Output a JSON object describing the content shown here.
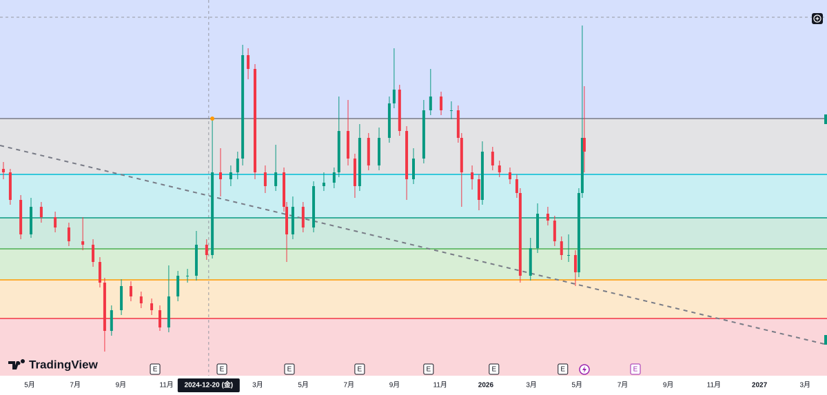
{
  "chart_data": {
    "type": "candlestick",
    "xlim": [
      -1.3,
      34.96
    ],
    "ylim": [
      0,
      545
    ],
    "xticks": [
      {
        "value": 0,
        "label": "5月"
      },
      {
        "value": 2,
        "label": "7月"
      },
      {
        "value": 4,
        "label": "9月"
      },
      {
        "value": 6,
        "label": "11月"
      },
      {
        "value": 10,
        "label": "3月"
      },
      {
        "value": 12,
        "label": "5月"
      },
      {
        "value": 14,
        "label": "7月"
      },
      {
        "value": 16,
        "label": "9月"
      },
      {
        "value": 18,
        "label": "11月"
      },
      {
        "value": 20,
        "label": "2026"
      },
      {
        "value": 22,
        "label": "3月"
      },
      {
        "value": 24,
        "label": "5月"
      },
      {
        "value": 26,
        "label": "7月"
      },
      {
        "value": 28,
        "label": "9月"
      },
      {
        "value": 30,
        "label": "11月"
      },
      {
        "value": 32,
        "label": "2027"
      },
      {
        "value": 34,
        "label": "3月"
      }
    ],
    "up_color": "#089981",
    "down_color": "#f23645",
    "x": [
      -1.15,
      -0.85,
      -0.39,
      0.06,
      0.51,
      1.12,
      1.72,
      2.33,
      2.78,
      3.08,
      3.29,
      3.59,
      4.02,
      4.44,
      4.89,
      5.35,
      5.71,
      6.1,
      6.5,
      6.92,
      7.31,
      7.76,
      8.01,
      8.37,
      8.82,
      9.12,
      9.34,
      9.58,
      9.88,
      10.33,
      10.79,
      11.15,
      11.27,
      11.54,
      11.99,
      12.45,
      12.9,
      13.35,
      13.56,
      13.96,
      14.26,
      14.47,
      14.86,
      15.32,
      15.77,
      15.98,
      16.22,
      16.53,
      16.83,
      17.28,
      17.58,
      18.04,
      18.49,
      18.79,
      18.94,
      19.4,
      19.7,
      19.85,
      20.3,
      20.6,
      21.06,
      21.36,
      21.51,
      21.96,
      22.27,
      22.72,
      23.02,
      23.32,
      23.63,
      23.93,
      24.08,
      24.23,
      24.32
    ],
    "open": [
      300,
      295,
      255,
      205,
      245,
      230,
      215,
      195,
      190,
      165,
      135,
      65,
      95,
      130,
      115,
      105,
      95,
      70,
      115,
      145,
      145,
      190,
      175,
      295,
      285,
      295,
      315,
      465,
      445,
      295,
      275,
      295,
      245,
      205,
      245,
      215,
      275,
      280,
      295,
      355,
      315,
      275,
      345,
      305,
      345,
      395,
      415,
      355,
      285,
      315,
      385,
      405,
      385,
      385,
      345,
      295,
      285,
      255,
      325,
      305,
      295,
      285,
      265,
      145,
      185,
      235,
      225,
      195,
      175,
      175,
      150,
      265,
      345
    ],
    "high": [
      310,
      300,
      262,
      258,
      252,
      238,
      222,
      230,
      198,
      172,
      142,
      102,
      140,
      137,
      122,
      112,
      102,
      160,
      152,
      155,
      210,
      198,
      373,
      330,
      305,
      325,
      480,
      475,
      452,
      305,
      335,
      302,
      252,
      260,
      252,
      282,
      295,
      302,
      405,
      400,
      322,
      365,
      352,
      360,
      405,
      475,
      422,
      362,
      330,
      400,
      445,
      412,
      398,
      392,
      352,
      305,
      292,
      340,
      332,
      312,
      302,
      292,
      272,
      200,
      250,
      245,
      232,
      202,
      205,
      182,
      272,
      508,
      420
    ],
    "low": [
      285,
      248,
      198,
      200,
      222,
      208,
      188,
      182,
      158,
      128,
      35,
      58,
      88,
      108,
      98,
      88,
      65,
      63,
      108,
      135,
      138,
      168,
      170,
      260,
      275,
      285,
      305,
      430,
      285,
      265,
      268,
      238,
      165,
      198,
      208,
      208,
      268,
      272,
      288,
      305,
      258,
      268,
      298,
      298,
      338,
      388,
      348,
      255,
      278,
      308,
      378,
      378,
      372,
      338,
      245,
      270,
      240,
      248,
      298,
      288,
      278,
      258,
      135,
      138,
      178,
      218,
      188,
      168,
      165,
      130,
      143,
      258,
      295
    ],
    "close": [
      295,
      255,
      205,
      245,
      230,
      215,
      195,
      190,
      165,
      135,
      65,
      95,
      130,
      115,
      105,
      95,
      70,
      115,
      145,
      145,
      190,
      175,
      295,
      285,
      295,
      315,
      465,
      445,
      295,
      275,
      295,
      245,
      205,
      245,
      215,
      275,
      280,
      295,
      355,
      315,
      275,
      345,
      305,
      345,
      395,
      415,
      355,
      285,
      315,
      385,
      405,
      385,
      385,
      345,
      295,
      285,
      255,
      325,
      305,
      295,
      285,
      265,
      145,
      185,
      235,
      225,
      195,
      175,
      175,
      150,
      265,
      345,
      325
    ],
    "fib_top_fill": "#d6e0fd",
    "fib_levels": [
      {
        "value": 373,
        "color": "#787b86",
        "fill": "#e3e3e5"
      },
      {
        "value": 292,
        "color": "#00bcd4",
        "fill": "#c9eff3"
      },
      {
        "value": 229,
        "color": "#089981",
        "fill": "#cdeadf"
      },
      {
        "value": 184,
        "color": "#4caf50",
        "fill": "#d8eed5"
      },
      {
        "value": 139,
        "color": "#ff9800",
        "fill": "#fde9cc"
      },
      {
        "value": 83,
        "color": "#f23645",
        "fill": "#fbd6da"
      }
    ],
    "fib_anchor": {
      "x": 8.01,
      "y": 373
    },
    "trendline": {
      "x": [
        -1.3,
        34.96
      ],
      "y": [
        334,
        45
      ],
      "color": "#787b86"
    },
    "crosshair": {
      "x": 7.85,
      "y": 520,
      "label": "2024-12-20 (金)"
    },
    "events": [
      {
        "x": 5.5,
        "label": "E",
        "color": "#131722"
      },
      {
        "x": 8.43,
        "label": "E",
        "color": "#131722"
      },
      {
        "x": 11.39,
        "label": "E",
        "color": "#131722"
      },
      {
        "x": 14.47,
        "label": "E",
        "color": "#131722"
      },
      {
        "x": 17.49,
        "label": "E",
        "color": "#131722"
      },
      {
        "x": 20.36,
        "label": "E",
        "color": "#131722"
      },
      {
        "x": 23.38,
        "label": "E",
        "color": "#131722"
      },
      {
        "x": 26.56,
        "label": "E",
        "color": "#9c27b0"
      }
    ],
    "logo": "TradingView"
  }
}
